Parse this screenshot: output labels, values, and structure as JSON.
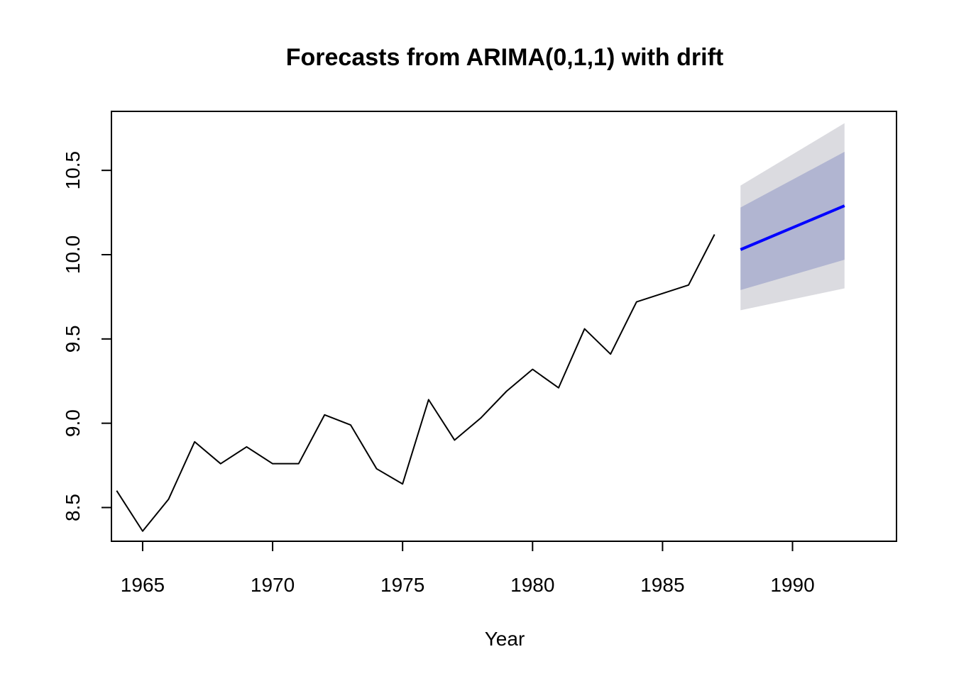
{
  "chart_data": {
    "type": "line",
    "title": "Forecasts from ARIMA(0,1,1) with drift",
    "xlabel": "Year",
    "ylabel": "",
    "xlim": [
      1963.8,
      1994.0
    ],
    "ylim": [
      8.3,
      10.85
    ],
    "x_ticks": [
      1965,
      1970,
      1975,
      1980,
      1985,
      1990
    ],
    "y_ticks": [
      8.5,
      9.0,
      9.5,
      10.0,
      10.5
    ],
    "grid": false,
    "legend": "none",
    "series": [
      {
        "role": "observed",
        "color": "#000000",
        "x": [
          1964,
          1965,
          1966,
          1967,
          1968,
          1969,
          1970,
          1971,
          1972,
          1973,
          1974,
          1975,
          1976,
          1977,
          1978,
          1979,
          1980,
          1981,
          1982,
          1983,
          1984,
          1985,
          1986,
          1987
        ],
        "y": [
          8.6,
          8.36,
          8.55,
          8.89,
          8.76,
          8.86,
          8.76,
          8.76,
          9.05,
          8.99,
          8.73,
          8.64,
          9.14,
          8.9,
          9.03,
          9.19,
          9.32,
          9.21,
          9.56,
          9.41,
          9.72,
          9.77,
          9.82,
          10.12
        ]
      },
      {
        "role": "forecast",
        "color": "#0000ff",
        "x": [
          1988,
          1992
        ],
        "y": [
          10.03,
          10.29
        ],
        "lower80": [
          9.79,
          9.97
        ],
        "upper80": [
          10.28,
          10.61
        ],
        "lower95": [
          9.67,
          9.8
        ],
        "upper95": [
          10.41,
          10.78
        ],
        "band80_color": "#b1b5d1",
        "band95_color": "#dbdbe0"
      }
    ]
  }
}
